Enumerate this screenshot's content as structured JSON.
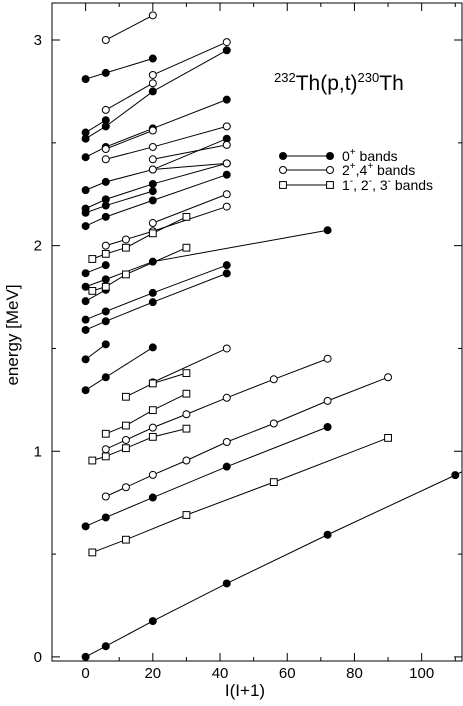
{
  "chart_data": {
    "type": "line",
    "title": {
      "pre_sup": "232",
      "mid": "Th(p,t)",
      "post_sup": "230",
      "end": "Th"
    },
    "xlabel": "I(I+1)",
    "ylabel": "energy [MeV]",
    "xlim": [
      -10,
      112
    ],
    "ylim": [
      -0.02,
      3.18
    ],
    "xticks": [
      0,
      20,
      40,
      60,
      80,
      100
    ],
    "xtick_labels": [
      "0",
      "20",
      "40",
      "60",
      "80",
      "100"
    ],
    "yticks": [
      0,
      1,
      2,
      3
    ],
    "ytick_labels": [
      "0",
      "1",
      "2",
      "3"
    ],
    "grid": false,
    "legend_position": "top-right",
    "legend": [
      {
        "marker": "filled-circle",
        "label": "0",
        "sup": "+",
        "suffix": " bands"
      },
      {
        "marker": "open-circle",
        "label": "2",
        "sup": "+",
        "mid": ",4",
        "sup2": "+",
        "suffix": " bands"
      },
      {
        "marker": "open-square",
        "label": "1",
        "sup": "-",
        "mid": ", 2",
        "sup2": "-",
        "mid2": ", 3",
        "sup3": "-",
        "suffix": " bands"
      }
    ],
    "series": [
      {
        "marker": "filled-circle",
        "x": [
          0,
          6,
          20,
          42,
          72,
          110
        ],
        "y": [
          0,
          0.052,
          0.174,
          0.357,
          0.594,
          0.884
        ],
        "extend_to": [
          112,
          0.9
        ]
      },
      {
        "marker": "filled-circle",
        "x": [
          0,
          6,
          20,
          42,
          72
        ],
        "y": [
          0.635,
          0.678,
          0.775,
          0.925,
          1.118
        ]
      },
      {
        "marker": "filled-circle",
        "x": [
          0,
          6,
          20
        ],
        "y": [
          1.297,
          1.36,
          1.505
        ]
      },
      {
        "marker": "filled-circle",
        "x": [
          0,
          6
        ],
        "y": [
          1.447,
          1.52
        ]
      },
      {
        "marker": "filled-circle",
        "x": [
          0,
          6,
          20,
          42
        ],
        "y": [
          1.59,
          1.632,
          1.725,
          1.865
        ]
      },
      {
        "marker": "filled-circle",
        "x": [
          0,
          6,
          20,
          42
        ],
        "y": [
          1.64,
          1.68,
          1.77,
          1.905
        ]
      },
      {
        "marker": "filled-circle",
        "x": [
          0,
          6
        ],
        "y": [
          1.73,
          1.785
        ]
      },
      {
        "marker": "filled-circle",
        "x": [
          0,
          6,
          20,
          72
        ],
        "y": [
          1.8,
          1.836,
          1.922,
          2.075
        ]
      },
      {
        "marker": "filled-circle",
        "x": [
          0,
          6
        ],
        "y": [
          1.866,
          1.905
        ]
      },
      {
        "marker": "filled-circle",
        "x": [
          0,
          6,
          20,
          42
        ],
        "y": [
          2.095,
          2.14,
          2.22,
          2.345
        ]
      },
      {
        "marker": "filled-circle",
        "x": [
          0,
          6,
          20
        ],
        "y": [
          2.16,
          2.195,
          2.265
        ]
      },
      {
        "marker": "filled-circle",
        "x": [
          0,
          6,
          20,
          42
        ],
        "y": [
          2.18,
          2.225,
          2.3,
          2.4
        ]
      },
      {
        "marker": "filled-circle",
        "x": [
          0,
          6,
          20,
          42
        ],
        "y": [
          2.27,
          2.31,
          2.37,
          2.52
        ]
      },
      {
        "marker": "filled-circle",
        "x": [
          0,
          6,
          20,
          42
        ],
        "y": [
          2.43,
          2.48,
          2.57,
          2.71
        ]
      },
      {
        "marker": "filled-circle",
        "x": [
          0,
          6,
          20,
          42
        ],
        "y": [
          2.52,
          2.58,
          2.75,
          2.95
        ]
      },
      {
        "marker": "filled-circle",
        "x": [
          0,
          6
        ],
        "y": [
          2.55,
          2.61
        ]
      },
      {
        "marker": "filled-circle",
        "x": [
          0,
          6,
          20
        ],
        "y": [
          2.81,
          2.84,
          2.91
        ]
      },
      {
        "marker": "open-circle",
        "x": [
          6,
          12,
          20,
          30,
          42,
          56,
          72,
          90
        ],
        "y": [
          0.78,
          0.825,
          0.885,
          0.955,
          1.045,
          1.135,
          1.245,
          1.36
        ]
      },
      {
        "marker": "open-circle",
        "x": [
          6,
          12,
          20,
          30,
          42,
          56,
          72
        ],
        "y": [
          1.01,
          1.055,
          1.115,
          1.18,
          1.26,
          1.35,
          1.45
        ]
      },
      {
        "marker": "open-circle",
        "x": [
          20,
          42
        ],
        "y": [
          1.335,
          1.5
        ]
      },
      {
        "marker": "open-circle",
        "x": [
          6,
          12,
          20,
          42
        ],
        "y": [
          2.0,
          2.03,
          2.07,
          2.19
        ]
      },
      {
        "marker": "open-circle",
        "x": [
          20,
          42
        ],
        "y": [
          2.11,
          2.25
        ]
      },
      {
        "marker": "open-circle",
        "x": [
          6,
          20,
          42
        ],
        "y": [
          2.42,
          2.48,
          2.58
        ]
      },
      {
        "marker": "open-circle",
        "x": [
          6,
          20
        ],
        "y": [
          2.47,
          2.56
        ]
      },
      {
        "marker": "open-circle",
        "x": [
          20,
          42
        ],
        "y": [
          2.42,
          2.49
        ]
      },
      {
        "marker": "open-circle",
        "x": [
          20,
          42
        ],
        "y": [
          2.37,
          2.4
        ]
      },
      {
        "marker": "open-circle",
        "x": [
          6,
          20
        ],
        "y": [
          2.66,
          2.79
        ]
      },
      {
        "marker": "open-circle",
        "x": [
          20,
          42
        ],
        "y": [
          2.83,
          2.99
        ]
      },
      {
        "marker": "open-circle",
        "x": [
          6,
          20
        ],
        "y": [
          3.0,
          3.12
        ]
      },
      {
        "marker": "open-square",
        "x": [
          2,
          12,
          30,
          56,
          90
        ],
        "y": [
          0.508,
          0.57,
          0.69,
          0.85,
          1.065
        ]
      },
      {
        "marker": "open-square",
        "x": [
          2,
          6,
          12,
          20,
          30
        ],
        "y": [
          0.955,
          0.975,
          1.015,
          1.07,
          1.11
        ]
      },
      {
        "marker": "open-square",
        "x": [
          6,
          12,
          20,
          30
        ],
        "y": [
          1.085,
          1.125,
          1.2,
          1.28
        ]
      },
      {
        "marker": "open-square",
        "x": [
          12,
          20,
          30
        ],
        "y": [
          1.265,
          1.33,
          1.38
        ]
      },
      {
        "marker": "open-square",
        "x": [
          2,
          6,
          12,
          30
        ],
        "y": [
          1.78,
          1.8,
          1.86,
          1.99
        ]
      },
      {
        "marker": "open-square",
        "x": [
          2,
          6,
          12,
          20,
          30
        ],
        "y": [
          1.935,
          1.96,
          1.99,
          2.06,
          2.14
        ]
      }
    ]
  }
}
